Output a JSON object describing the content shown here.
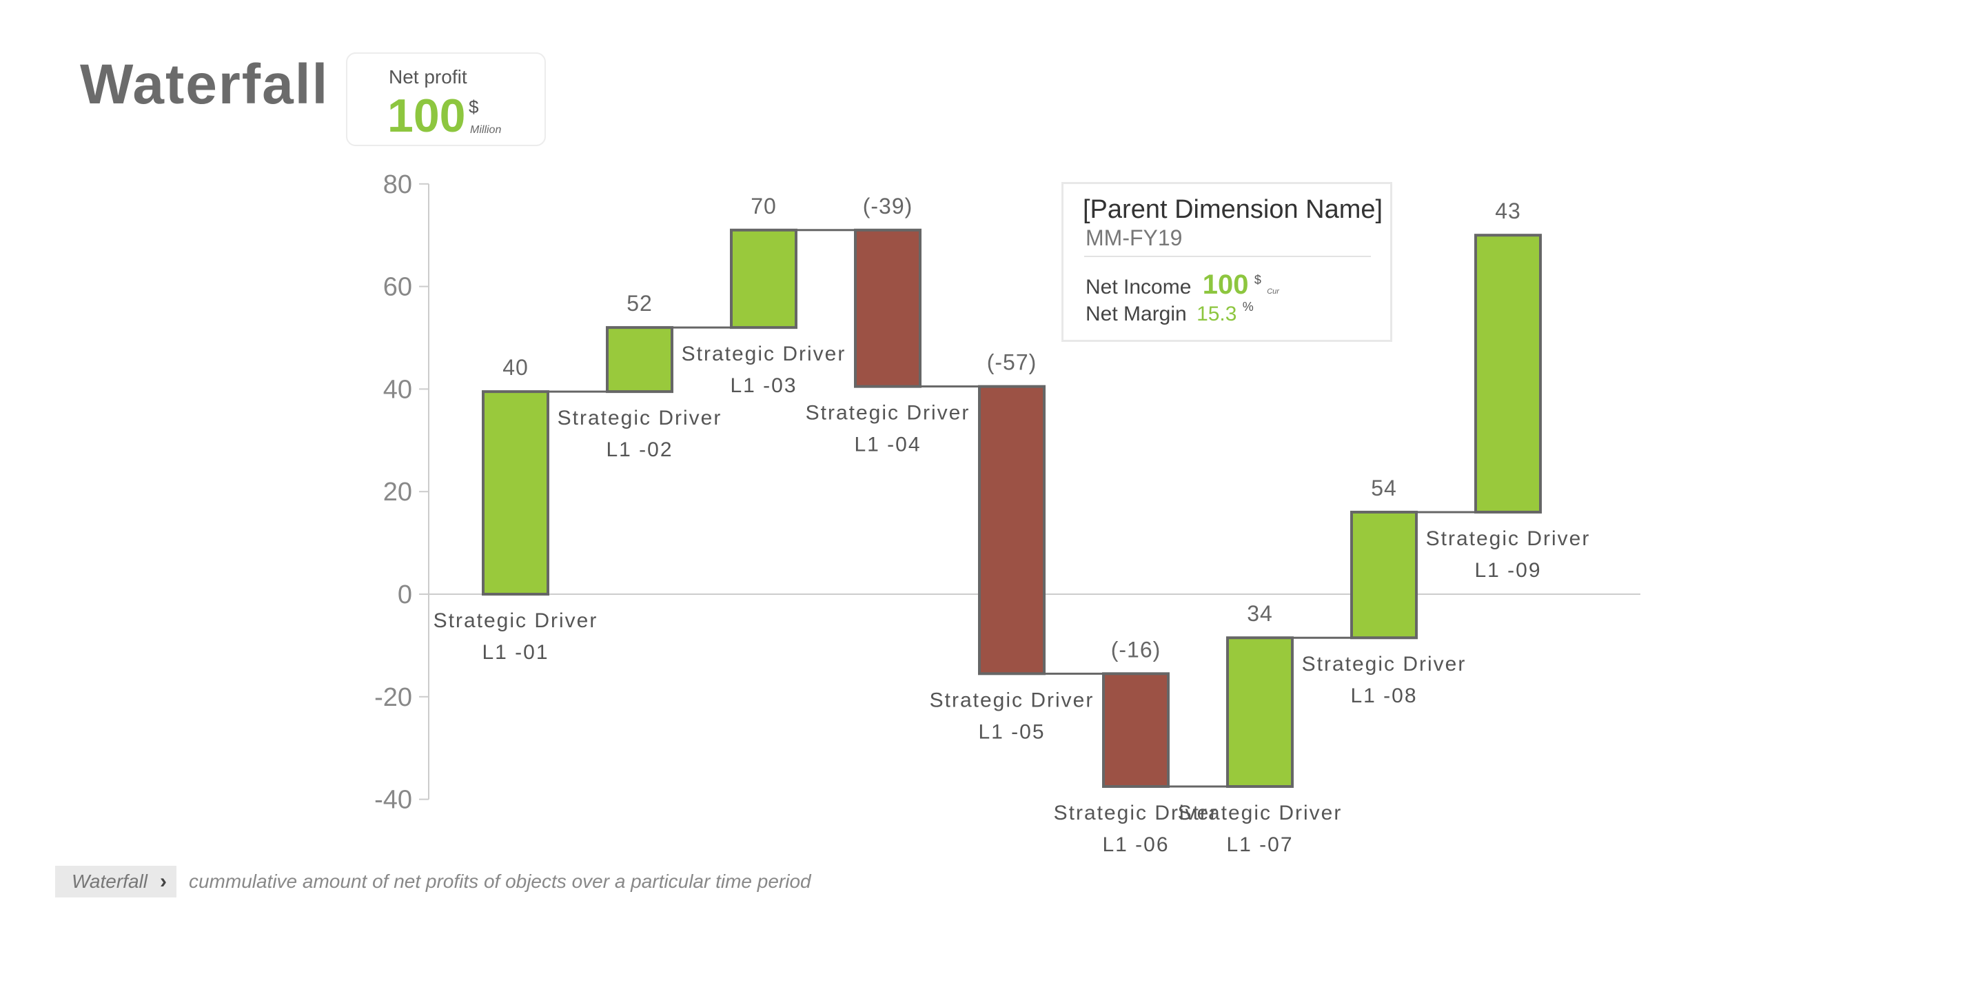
{
  "header": {
    "title": "Waterfall"
  },
  "kpi": {
    "label": "Net profit",
    "value": "100",
    "currency": "$",
    "unit": "Million"
  },
  "tooltip": {
    "title": "[Parent Dimension Name]",
    "subtitle": "MM-FY19",
    "rows": [
      {
        "label": "Net Income",
        "value": "100",
        "sup": "$",
        "sub": "Cur"
      },
      {
        "label": "Net Margin",
        "value": "15.3",
        "sup": "%"
      }
    ]
  },
  "footer": {
    "crumb": "Waterfall",
    "description": "cummulative amount of net profits of objects over a particular time period"
  },
  "colors": {
    "increase": "#99c93c",
    "decrease": "#9c5245",
    "accent": "#8dc63f",
    "bar_border": "#666666",
    "axis": "#cccccc"
  },
  "chart_data": {
    "type": "waterfall",
    "ylim": [
      -40,
      80
    ],
    "yticks": [
      "80",
      "60",
      "40",
      "20",
      "0",
      "-20",
      "-40"
    ],
    "ytick_values": [
      80,
      60,
      40,
      20,
      0,
      -20,
      -40
    ],
    "bars": [
      {
        "name": "Strategic Driver",
        "code": "L1 -01",
        "label": "40",
        "start": 0,
        "end": 39.5,
        "kind": "increase",
        "label_pos": "below"
      },
      {
        "name": "Strategic Driver",
        "code": "L1 -02",
        "label": "52",
        "start": 39.5,
        "end": 52,
        "kind": "increase",
        "label_pos": "below"
      },
      {
        "name": "Strategic Driver",
        "code": "L1 -03",
        "label": "70",
        "start": 52,
        "end": 71,
        "kind": "increase",
        "label_pos": "below"
      },
      {
        "name": "Strategic Driver",
        "code": "L1 -04",
        "label": "(-39)",
        "start": 71,
        "end": 40.5,
        "kind": "decrease",
        "label_pos": "below"
      },
      {
        "name": "Strategic Driver",
        "code": "L1 -05",
        "label": "(-57)",
        "start": 40.5,
        "end": -15.5,
        "kind": "decrease",
        "label_pos": "below"
      },
      {
        "name": "Strategic Driver",
        "code": "L1 -06",
        "label": "(-16)",
        "start": -15.5,
        "end": -37.5,
        "kind": "decrease",
        "label_pos": "below"
      },
      {
        "name": "Strategic Driver",
        "code": "L1 -07",
        "label": "34",
        "start": -37.5,
        "end": -8.5,
        "kind": "increase",
        "label_pos": "below"
      },
      {
        "name": "Strategic Driver",
        "code": "L1 -08",
        "label": "54",
        "start": -8.5,
        "end": 16,
        "kind": "increase",
        "label_pos": "right"
      },
      {
        "name": "Strategic Driver",
        "code": "L1 -09",
        "label": "43",
        "start": 16,
        "end": 70,
        "kind": "increase",
        "label_pos": "below"
      }
    ]
  }
}
